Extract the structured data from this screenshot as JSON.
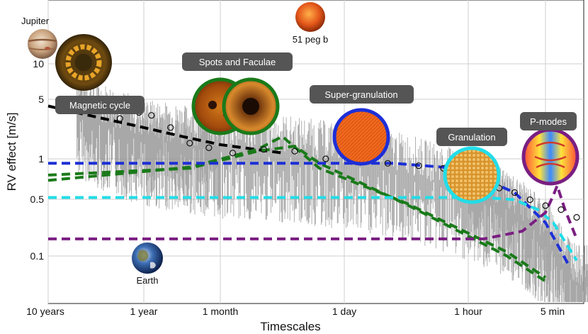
{
  "chart_data": {
    "type": "line",
    "title": "",
    "xlabel": "Timescales",
    "ylabel": "RV effect [m/s]",
    "x_scale": "log (timescale, decreasing to the right)",
    "y_scale": "log",
    "ylim": [
      0.04,
      30
    ],
    "x_ticks": [
      "10 years",
      "1 year",
      "1 month",
      "1 day",
      "1 hour",
      "5 min"
    ],
    "y_ticks": [
      "0.1",
      "0.5",
      "1",
      "5",
      "10"
    ],
    "grid": true,
    "series": [
      {
        "name": "Magnetic cycle",
        "color": "#000000",
        "style": "dashed",
        "points": [
          [
            0,
            3.5
          ],
          [
            0.5,
            2.7
          ],
          [
            1,
            2.1
          ],
          [
            1.5,
            1.7
          ],
          [
            2,
            1.4
          ],
          [
            2.5,
            1.15
          ]
        ]
      },
      {
        "name": "Spots and Faculae",
        "color": "#1a7a1a",
        "style": "dashed",
        "points": [
          [
            0,
            0.6
          ],
          [
            1.6,
            0.82
          ],
          [
            2.3,
            1.25
          ],
          [
            2.5,
            1.7
          ],
          [
            2.8,
            0.8
          ],
          [
            3.5,
            0.35
          ],
          [
            4.5,
            0.11
          ],
          [
            5,
            0.06
          ]
        ]
      },
      {
        "name": "Spots and Faculae",
        "color": "#1a7a1a",
        "style": "dashed",
        "points": [
          [
            0,
            0.68
          ],
          [
            1.6,
            0.8
          ],
          [
            2.3,
            1.2
          ],
          [
            2.6,
            1.35
          ],
          [
            2.8,
            0.9
          ],
          [
            3.5,
            0.34
          ],
          [
            4.5,
            0.1
          ],
          [
            5,
            0.055
          ]
        ]
      },
      {
        "name": "Super-granulation",
        "color": "#1d2fd6",
        "style": "dashed",
        "points": [
          [
            0,
            0.9
          ],
          [
            3.4,
            0.9
          ],
          [
            3.8,
            0.82
          ],
          [
            4.2,
            0.62
          ],
          [
            4.6,
            0.45
          ],
          [
            5,
            0.22
          ],
          [
            5.3,
            0.08
          ]
        ]
      },
      {
        "name": "Granulation",
        "color": "#22dde8",
        "style": "dashed",
        "points": [
          [
            0,
            0.4
          ],
          [
            4.2,
            0.4
          ],
          [
            4.6,
            0.38
          ],
          [
            4.9,
            0.3
          ],
          [
            5.1,
            0.22
          ],
          [
            5.4,
            0.09
          ]
        ]
      },
      {
        "name": "P-modes",
        "color": "#7a1e82",
        "style": "dashed",
        "points": [
          [
            0,
            0.15
          ],
          [
            4.2,
            0.15
          ],
          [
            4.7,
            0.18
          ],
          [
            5,
            0.28
          ],
          [
            5.1,
            0.42
          ],
          [
            5.15,
            0.53
          ],
          [
            5.25,
            0.3
          ],
          [
            5.4,
            0.15
          ]
        ]
      },
      {
        "name": "Binned spectrum",
        "color": "#111111",
        "style": "open circles",
        "points": [
          [
            0.5,
            3.2
          ],
          [
            0.75,
            2.6
          ],
          [
            0.95,
            3.0
          ],
          [
            1.1,
            2.8
          ],
          [
            1.35,
            2.1
          ],
          [
            1.6,
            1.45
          ],
          [
            1.85,
            1.3
          ],
          [
            2.1,
            1.15
          ],
          [
            2.35,
            1.25
          ],
          [
            2.6,
            1.2
          ],
          [
            2.85,
            1.0
          ],
          [
            3.1,
            0.95
          ],
          [
            3.35,
            0.9
          ],
          [
            3.6,
            0.85
          ],
          [
            3.8,
            0.8
          ],
          [
            4.0,
            0.68
          ],
          [
            4.2,
            0.6
          ],
          [
            4.4,
            0.5
          ],
          [
            4.6,
            0.45
          ],
          [
            4.8,
            0.38
          ],
          [
            5.0,
            0.33
          ],
          [
            5.2,
            0.3
          ],
          [
            5.4,
            0.25
          ],
          [
            5.6,
            0.2
          ]
        ]
      },
      {
        "name": "Raw periodogram",
        "color": "#999999",
        "style": "noisy line",
        "points": [
          [
            0,
            5
          ],
          [
            0.5,
            2.5
          ],
          [
            1,
            1.6
          ],
          [
            1.5,
            1.4
          ],
          [
            2,
            1.2
          ],
          [
            2.5,
            1.1
          ],
          [
            3,
            0.9
          ],
          [
            3.5,
            0.7
          ],
          [
            4,
            0.45
          ],
          [
            4.5,
            0.3
          ],
          [
            5,
            0.15
          ],
          [
            5.4,
            0.05
          ]
        ]
      }
    ],
    "annotations": [
      "Magnetic cycle",
      "Spots and Faculae",
      "Super-granulation",
      "Granulation",
      "P-modes"
    ],
    "objects": [
      "Jupiter",
      "51 peg b",
      "Earth"
    ]
  },
  "colors": {
    "label_bg": "#555555",
    "sun_ring": "#1a7a1a",
    "super_ring": "#1d2fd6",
    "gran_ring": "#22dde8",
    "pmode_ring": "#7a1e82"
  }
}
